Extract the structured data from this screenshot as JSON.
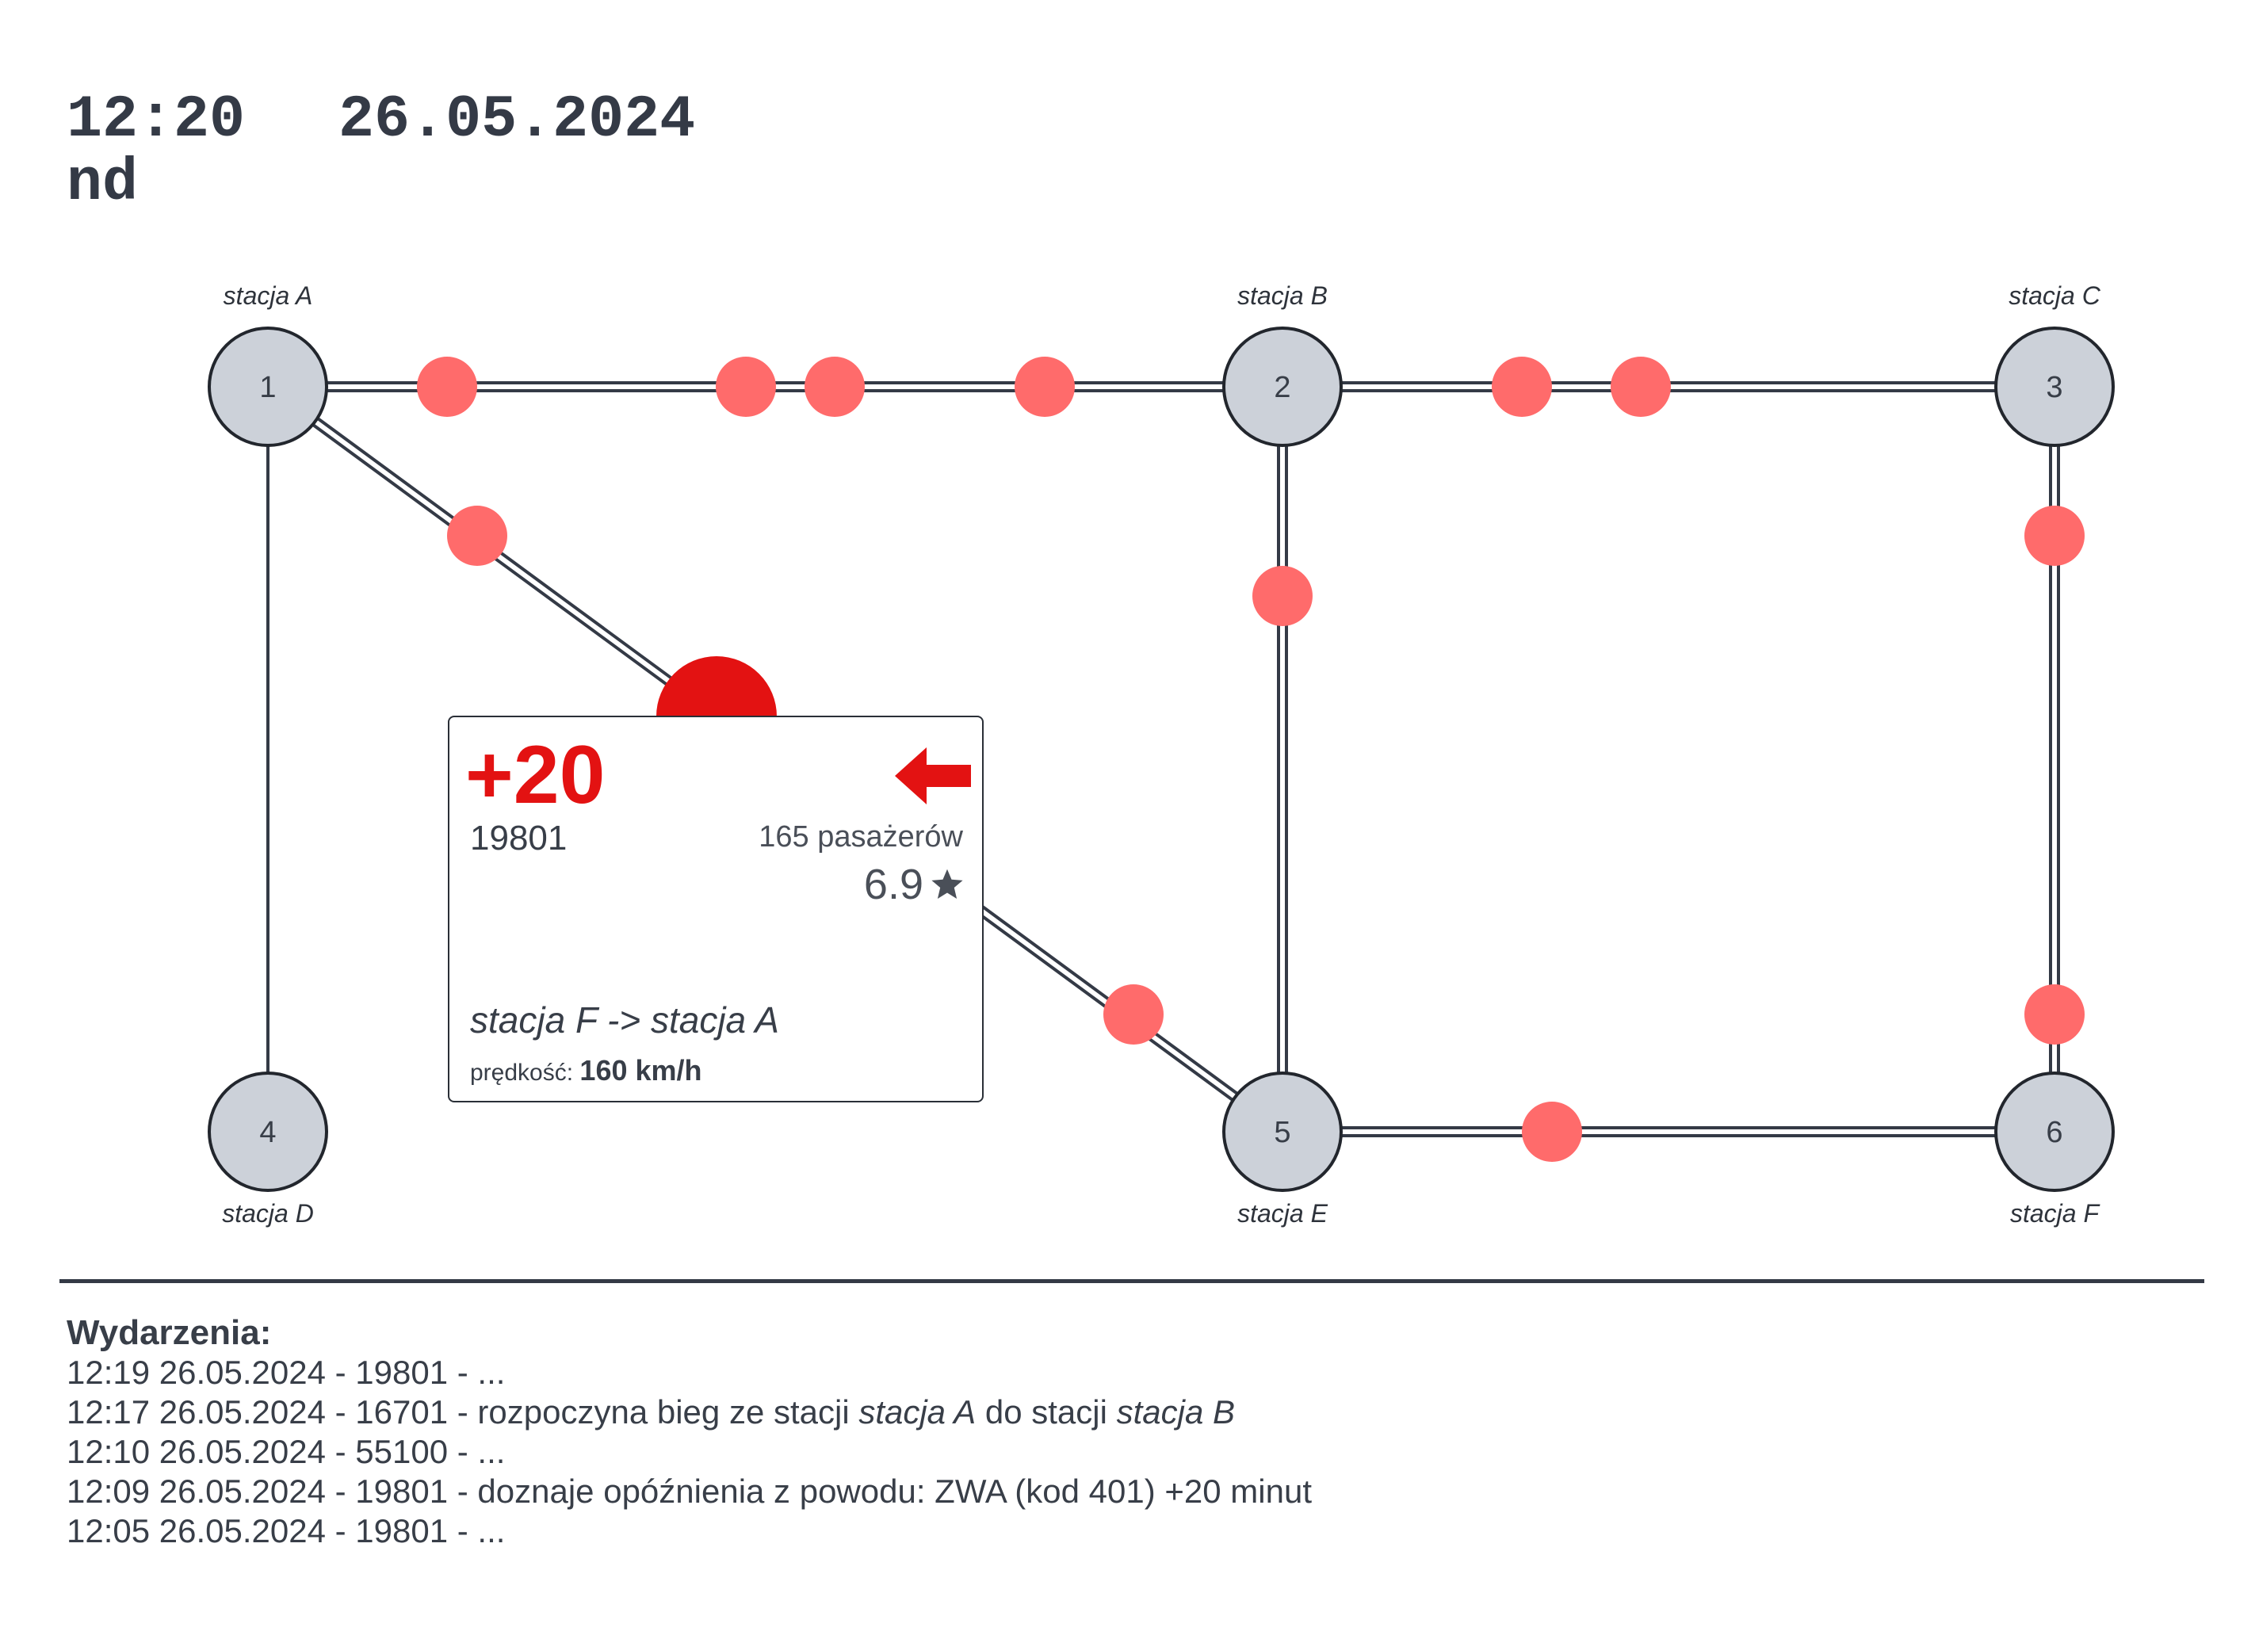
{
  "header": {
    "time": "12:20",
    "date": "26.05.2024",
    "weekday": "nd"
  },
  "colors": {
    "node_fill": "#ccd1d9",
    "node_stroke": "#22262d",
    "track": "#343a46",
    "train_dot": "#ff6b6b",
    "selected_train": "#e31212"
  },
  "stations": [
    {
      "id": "1",
      "label": "stacja A"
    },
    {
      "id": "2",
      "label": "stacja B"
    },
    {
      "id": "3",
      "label": "stacja C"
    },
    {
      "id": "4",
      "label": "stacja D"
    },
    {
      "id": "5",
      "label": "stacja E"
    },
    {
      "id": "6",
      "label": "stacja F"
    }
  ],
  "popup": {
    "delay": "+20",
    "train_number": "19801",
    "passengers": "165 pasażerów",
    "rating": "6.9",
    "direction_icon": "arrow-left-icon",
    "route": "stacja F -> stacja A",
    "speed_label": "prędkość:",
    "speed_value": "160 km/h"
  },
  "events": {
    "title": "Wydarzenia:",
    "rows": [
      {
        "parts": [
          "12:19 26.05.2024 - 19801 - ..."
        ]
      },
      {
        "parts": [
          "12:17 26.05.2024 - 16701 - rozpoczyna bieg ze stacji ",
          "stacja A",
          " do stacji ",
          "stacja B"
        ]
      },
      {
        "parts": [
          "12:10 26.05.2024 - 55100 - ..."
        ]
      },
      {
        "parts": [
          "12:09 26.05.2024 - 19801 - doznaje opóźnienia z powodu: ZWA (kod 401) +20 minut"
        ]
      },
      {
        "parts": [
          "12:05 26.05.2024 - 19801 - ..."
        ]
      }
    ]
  }
}
